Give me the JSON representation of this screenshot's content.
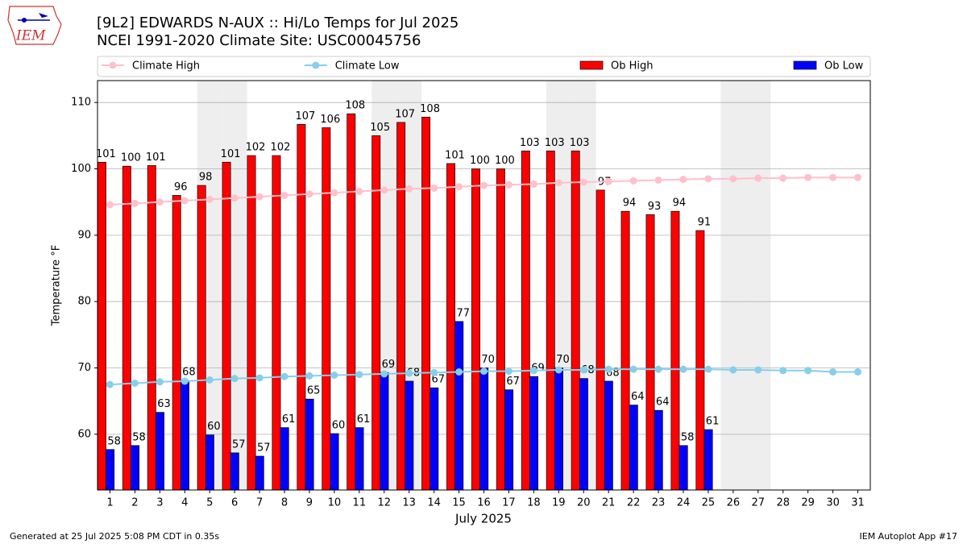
{
  "logo_text": "IEM",
  "footer_left": "Generated at 25 Jul 2025 5:08 PM CDT in 0.35s",
  "footer_right": "IEM Autoplot App #17",
  "chart_data": {
    "type": "bar",
    "title": "[9L2] EDWARDS N-AUX :: Hi/Lo Temps for Jul 2025",
    "subtitle": "NCEI 1991-2020 Climate Site: USC00045756",
    "x_label": "July 2025",
    "y_label": "Temperature °F",
    "x": [
      1,
      2,
      3,
      4,
      5,
      6,
      7,
      8,
      9,
      10,
      11,
      12,
      13,
      14,
      15,
      16,
      17,
      18,
      19,
      20,
      21,
      22,
      23,
      24,
      25,
      26,
      27,
      28,
      29,
      30,
      31
    ],
    "xlim": [
      0.5,
      31.5
    ],
    "ylim": [
      51.6,
      113.3
    ],
    "yticks": [
      60,
      70,
      80,
      90,
      100,
      110
    ],
    "grid": true,
    "legend": "top",
    "shaded": [
      5,
      6,
      12,
      13,
      19,
      20,
      26,
      27
    ],
    "series": [
      {
        "name": "Climate High",
        "type": "line",
        "color": "#ffc0cb",
        "values": [
          94.6,
          94.8,
          95.0,
          95.2,
          95.4,
          95.6,
          95.8,
          96.0,
          96.2,
          96.4,
          96.6,
          96.8,
          97.0,
          97.1,
          97.3,
          97.5,
          97.6,
          97.7,
          97.9,
          98.0,
          98.1,
          98.2,
          98.3,
          98.4,
          98.5,
          98.5,
          98.6,
          98.6,
          98.7,
          98.7,
          98.7
        ]
      },
      {
        "name": "Climate Low",
        "type": "line",
        "color": "#87ceeb",
        "values": [
          67.5,
          67.7,
          67.9,
          68.0,
          68.2,
          68.4,
          68.5,
          68.7,
          68.8,
          68.9,
          69.0,
          69.1,
          69.2,
          69.3,
          69.4,
          69.5,
          69.5,
          69.6,
          69.7,
          69.7,
          69.8,
          69.8,
          69.8,
          69.8,
          69.8,
          69.7,
          69.7,
          69.6,
          69.6,
          69.4,
          69.4
        ]
      },
      {
        "name": "Ob High",
        "type": "bar",
        "color": "#ff0000",
        "values": [
          101.0,
          100.4,
          100.5,
          96.0,
          97.5,
          101.0,
          102.0,
          102.0,
          106.7,
          106.2,
          108.3,
          105.0,
          107.0,
          107.8,
          100.8,
          100.0,
          100.0,
          102.7,
          102.7,
          102.7,
          96.8,
          93.6,
          93.1,
          93.6,
          90.7,
          null,
          null,
          null,
          null,
          null,
          null
        ],
        "value_labels": [
          "101",
          "100",
          "101",
          "96",
          "98",
          "101",
          "102",
          "102",
          "107",
          "106",
          "108",
          "105",
          "107",
          "108",
          "101",
          "100",
          "100",
          "103",
          "103",
          "103",
          "97",
          "94",
          "93",
          "94",
          "91",
          null,
          null,
          null,
          null,
          null,
          null
        ]
      },
      {
        "name": "Ob Low",
        "type": "bar",
        "color": "#0000ff",
        "values": [
          57.7,
          58.3,
          63.3,
          68.1,
          59.9,
          57.2,
          56.7,
          61.0,
          65.3,
          60.1,
          61.0,
          69.3,
          68.0,
          67.0,
          77.0,
          70.0,
          66.7,
          68.7,
          70.0,
          68.4,
          68.0,
          64.4,
          63.6,
          58.3,
          60.7,
          null,
          null,
          null,
          null,
          null,
          null
        ],
        "value_labels": [
          "58",
          "58",
          "63",
          "68",
          "60",
          "57",
          "57",
          "61",
          "65",
          "60",
          "61",
          "69",
          "68",
          "67",
          "77",
          "70",
          "67",
          "69",
          "70",
          "68",
          "68",
          "64",
          "64",
          "58",
          "61",
          null,
          null,
          null,
          null,
          null,
          null
        ]
      }
    ]
  }
}
